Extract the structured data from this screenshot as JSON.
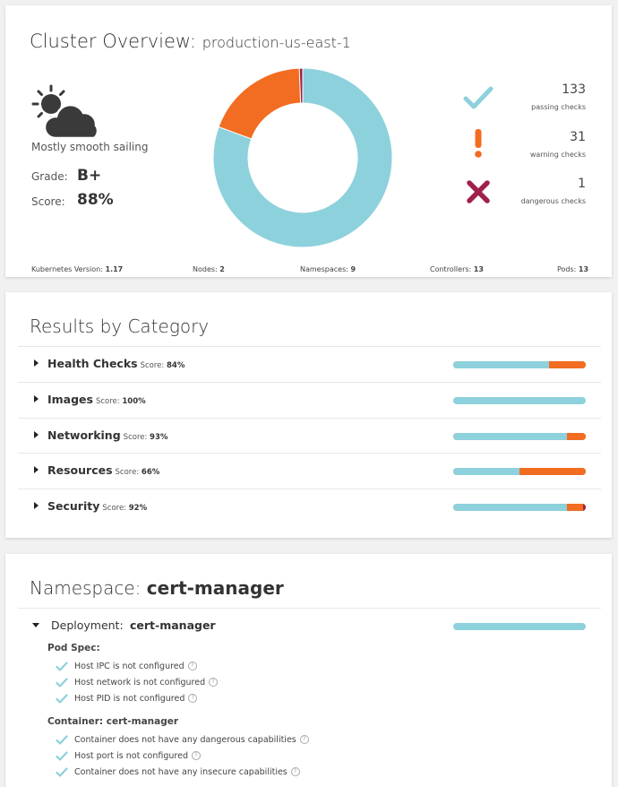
{
  "overview": {
    "title": "Cluster Overview:",
    "cluster_name": "production-us-east-1",
    "weather_label": "Mostly smooth sailing",
    "grade_label": "Grade:",
    "grade": "B+",
    "score_label": "Score:",
    "score": "88%",
    "checks": [
      {
        "count": "133",
        "label": "passing checks",
        "color": "#8dd1dc",
        "icon": "check-icon"
      },
      {
        "count": "31",
        "label": "warning checks",
        "color": "#f26c21",
        "icon": "exclamation-icon"
      },
      {
        "count": "1",
        "label": "dangerous checks",
        "color": "#a0204c",
        "icon": "x-icon"
      }
    ],
    "footer": [
      {
        "label": "Kubernetes Version:",
        "value": "1.17"
      },
      {
        "label": "Nodes:",
        "value": "2"
      },
      {
        "label": "Namespaces:",
        "value": "9"
      },
      {
        "label": "Controllers:",
        "value": "13"
      },
      {
        "label": "Pods:",
        "value": "13"
      }
    ]
  },
  "chart_data": {
    "type": "pie",
    "categories": [
      "passing",
      "warning",
      "dangerous"
    ],
    "values": [
      133,
      31,
      1
    ],
    "colors": [
      "#8dd1dc",
      "#f26c21",
      "#a0204c"
    ]
  },
  "categories": {
    "title": "Results by Category",
    "score_label": "Score:",
    "items": [
      {
        "name": "Health Checks",
        "score": "84%",
        "pass": 0.72,
        "warn": 0.28,
        "danger": 0
      },
      {
        "name": "Images",
        "score": "100%",
        "pass": 1.0,
        "warn": 0,
        "danger": 0
      },
      {
        "name": "Networking",
        "score": "93%",
        "pass": 0.86,
        "warn": 0.14,
        "danger": 0
      },
      {
        "name": "Resources",
        "score": "66%",
        "pass": 0.5,
        "warn": 0.5,
        "danger": 0
      },
      {
        "name": "Security",
        "score": "92%",
        "pass": 0.86,
        "warn": 0.12,
        "danger": 0.02
      }
    ]
  },
  "namespace": {
    "title_prefix": "Namespace:",
    "name": "cert-manager",
    "deployment_label": "Deployment:",
    "deployment_name": "cert-manager",
    "pod_spec_label": "Pod Spec:",
    "pod_spec_checks": [
      "Host IPC is not configured",
      "Host network is not configured",
      "Host PID is not configured"
    ],
    "container_label": "Container: cert-manager",
    "container_checks": [
      "Container does not have any dangerous capabilities",
      "Host port is not configured",
      "Container does not have any insecure capabilities"
    ],
    "help_glyph": "?"
  }
}
